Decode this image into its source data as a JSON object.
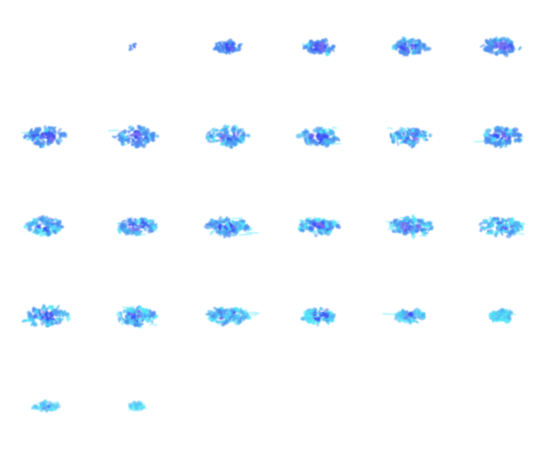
{
  "figure": {
    "type": "image-sequence",
    "columns": 6,
    "rows": 5,
    "frames": [
      {
        "content": "empty"
      },
      {
        "content": "few-cells",
        "density": 0.2,
        "cyan_fraction": 0.0
      },
      {
        "content": "cluster",
        "density": 0.4,
        "cyan_fraction": 0.05
      },
      {
        "content": "cluster",
        "density": 0.55,
        "cyan_fraction": 0.15
      },
      {
        "content": "cluster",
        "density": 0.65,
        "cyan_fraction": 0.2
      },
      {
        "content": "cluster",
        "density": 0.7,
        "cyan_fraction": 0.15
      },
      {
        "content": "cluster",
        "density": 0.85,
        "cyan_fraction": 0.15
      },
      {
        "content": "cluster",
        "density": 0.85,
        "cyan_fraction": 0.25
      },
      {
        "content": "cluster",
        "density": 0.85,
        "cyan_fraction": 0.4
      },
      {
        "content": "cluster",
        "density": 0.75,
        "cyan_fraction": 0.4
      },
      {
        "content": "cluster",
        "density": 0.75,
        "cyan_fraction": 0.4
      },
      {
        "content": "cluster",
        "density": 0.8,
        "cyan_fraction": 0.35
      },
      {
        "content": "cluster",
        "density": 0.8,
        "cyan_fraction": 0.35
      },
      {
        "content": "cluster",
        "density": 0.75,
        "cyan_fraction": 0.4
      },
      {
        "content": "cluster",
        "density": 0.8,
        "cyan_fraction": 0.45
      },
      {
        "content": "cluster",
        "density": 0.8,
        "cyan_fraction": 0.5
      },
      {
        "content": "cluster",
        "density": 0.85,
        "cyan_fraction": 0.5
      },
      {
        "content": "cluster",
        "density": 0.8,
        "cyan_fraction": 0.55
      },
      {
        "content": "cluster",
        "density": 0.85,
        "cyan_fraction": 0.55
      },
      {
        "content": "cluster",
        "density": 0.8,
        "cyan_fraction": 0.55
      },
      {
        "content": "cluster",
        "density": 0.8,
        "cyan_fraction": 0.6
      },
      {
        "content": "cluster",
        "density": 0.6,
        "cyan_fraction": 0.7
      },
      {
        "content": "cluster",
        "density": 0.45,
        "cyan_fraction": 0.8
      },
      {
        "content": "cluster",
        "density": 0.35,
        "cyan_fraction": 0.95
      },
      {
        "content": "fading",
        "density": 0.3,
        "cyan_fraction": 1.0
      },
      {
        "content": "fading",
        "density": 0.1,
        "cyan_fraction": 1.0
      },
      {
        "content": "empty"
      },
      {
        "content": "empty"
      },
      {
        "content": "empty"
      },
      {
        "content": "empty"
      }
    ],
    "colors": {
      "dark_blue": "#3b4ef5",
      "mid_blue": "#4a8cf0",
      "light_blue": "#4fb6f2",
      "cyan": "#4fe6f7",
      "violet": "#7a6cf0",
      "background": "#ffffff"
    }
  }
}
